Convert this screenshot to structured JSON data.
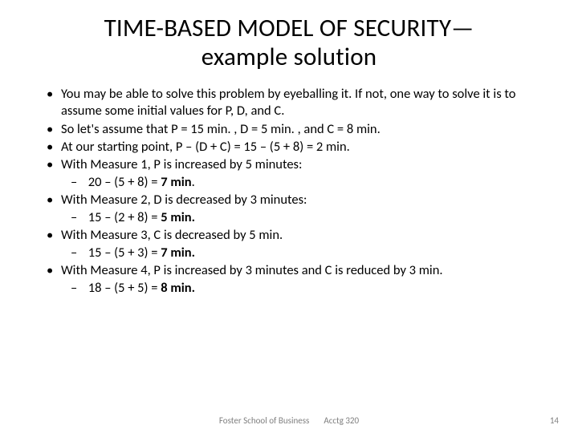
{
  "title_line1": "TIME-BASED MODEL OF SECURITY—",
  "title_line2": "example  solution",
  "bullets": {
    "b0": "You may be able to solve this problem by eyeballing it. If not, one way to solve it is to assume some initial values for P, D, and C.",
    "b1": "So let's assume that P = 15 min. , D = 5 min. , and C = 8 min.",
    "b2": "At our starting point, P – (D + C) = 15 – (5 + 8) = 2 min.",
    "b3": "With Measure 1, P is increased by 5 minutes:",
    "b3s_pre": "20 – (5 + 8) = ",
    "b3s_bold": "7 min",
    "b3s_post": ".",
    "b4": "With Measure 2, D is decreased by 3 minutes:",
    "b4s_pre": "15 – (2 + 8) = ",
    "b4s_bold": "5 min.",
    "b5": "With Measure 3, C is decreased by 5 min.",
    "b5s_pre": "15 – (5 + 3) = ",
    "b5s_bold": "7 min.",
    "b6": "With Measure 4, P is increased by 3 minutes and C is reduced by 3 min.",
    "b6s_pre": "18 – (5 + 5) = ",
    "b6s_bold": "8 min."
  },
  "footer": {
    "left": "Foster School of Business",
    "right": "Acctg 320",
    "page": "14"
  }
}
